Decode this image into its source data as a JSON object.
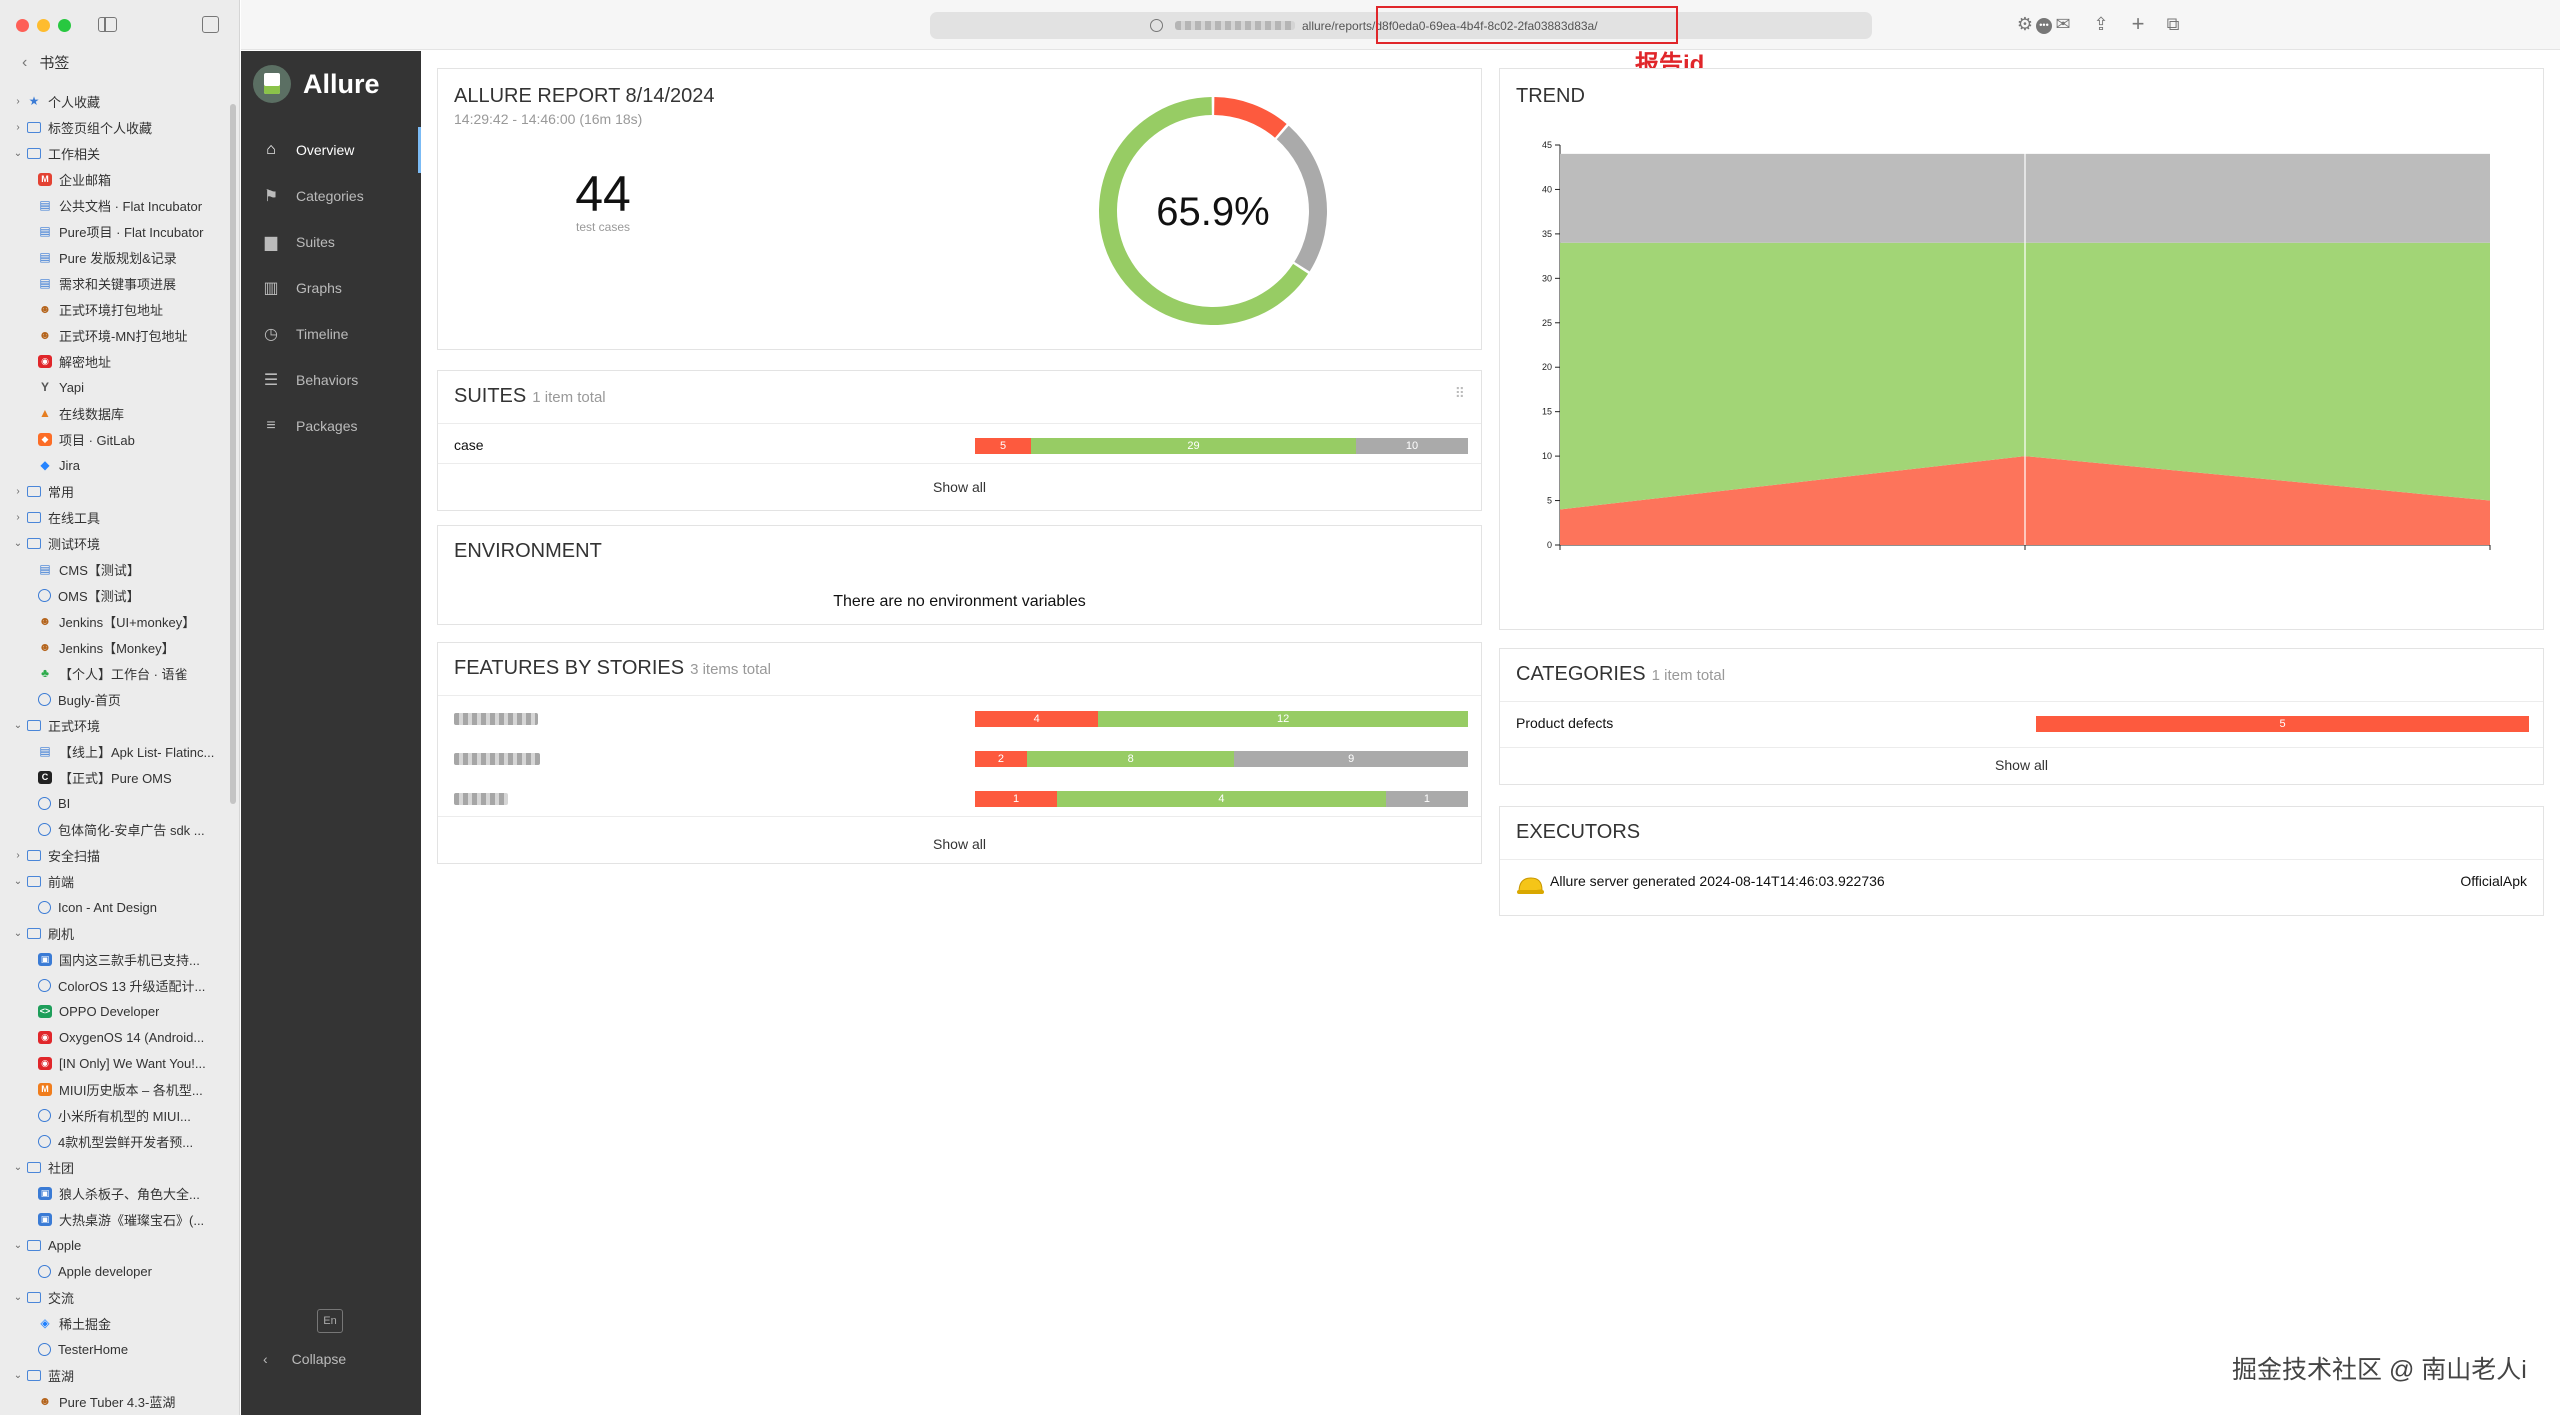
{
  "browser": {
    "bookmarks_header": "书签",
    "url_visible": "allure/reports/d8f0eda0-69ea-4b4f-8c02-2fa03883d83a/",
    "annotation_label": "报告id",
    "bookmarks": [
      {
        "label": "个人收藏",
        "kind": "star",
        "chev": "›",
        "indent": 0
      },
      {
        "label": "标签页组个人收藏",
        "kind": "folder",
        "chev": "›",
        "indent": 0
      },
      {
        "label": "工作相关",
        "kind": "folder",
        "chev": "⌄",
        "indent": 0
      },
      {
        "label": "企业邮箱",
        "kind": "mail",
        "indent": 1
      },
      {
        "label": "公共文档 · Flat Incubator",
        "kind": "doc",
        "indent": 1
      },
      {
        "label": "Pure项目 · Flat Incubator",
        "kind": "doc",
        "indent": 1
      },
      {
        "label": "Pure 发版规划&记录",
        "kind": "doc",
        "indent": 1
      },
      {
        "label": "需求和关键事项进展",
        "kind": "doc",
        "indent": 1
      },
      {
        "label": "正式环境打包地址",
        "kind": "jenkins",
        "indent": 1
      },
      {
        "label": "正式环境-MN打包地址",
        "kind": "jenkins",
        "indent": 1
      },
      {
        "label": "解密地址",
        "kind": "red",
        "indent": 1
      },
      {
        "label": "Yapi",
        "kind": "yapi",
        "indent": 1
      },
      {
        "label": "在线数据库",
        "kind": "db",
        "indent": 1
      },
      {
        "label": "项目 · GitLab",
        "kind": "gitlab",
        "indent": 1
      },
      {
        "label": "Jira",
        "kind": "jira",
        "indent": 1
      },
      {
        "label": "常用",
        "kind": "folder",
        "chev": "›",
        "indent": 0
      },
      {
        "label": "在线工具",
        "kind": "folder",
        "chev": "›",
        "indent": 0
      },
      {
        "label": "测试环境",
        "kind": "folder",
        "chev": "⌄",
        "indent": 0
      },
      {
        "label": "CMS【测试】",
        "kind": "doc",
        "indent": 1
      },
      {
        "label": "OMS【测试】",
        "kind": "globe",
        "indent": 1
      },
      {
        "label": "Jenkins【UI+monkey】",
        "kind": "jenkins",
        "indent": 1
      },
      {
        "label": "Jenkins【Monkey】",
        "kind": "jenkins",
        "indent": 1
      },
      {
        "label": "【个人】工作台 · 语雀",
        "kind": "yuque",
        "indent": 1
      },
      {
        "label": "Bugly-首页",
        "kind": "globe",
        "indent": 1
      },
      {
        "label": "正式环境",
        "kind": "folder",
        "chev": "⌄",
        "indent": 0
      },
      {
        "label": "【线上】Apk List- Flatinc...",
        "kind": "doc",
        "indent": 1
      },
      {
        "label": "【正式】Pure OMS",
        "kind": "dark",
        "indent": 1
      },
      {
        "label": "BI",
        "kind": "globe",
        "indent": 1
      },
      {
        "label": "包体简化-安卓广告 sdk ...",
        "kind": "globe",
        "indent": 1
      },
      {
        "label": "安全扫描",
        "kind": "folder",
        "chev": "›",
        "indent": 0
      },
      {
        "label": "前端",
        "kind": "folder",
        "chev": "⌄",
        "indent": 0
      },
      {
        "label": "Icon - Ant Design",
        "kind": "globe",
        "indent": 1
      },
      {
        "label": "刷机",
        "kind": "folder",
        "chev": "⌄",
        "indent": 0
      },
      {
        "label": "国内这三款手机已支持...",
        "kind": "blue",
        "indent": 1
      },
      {
        "label": "ColorOS 13 升级适配计...",
        "kind": "globe",
        "indent": 1
      },
      {
        "label": "OPPO Developer",
        "kind": "green",
        "indent": 1
      },
      {
        "label": "OxygenOS 14 (Android...",
        "kind": "red",
        "indent": 1
      },
      {
        "label": "[IN Only] We Want You!...",
        "kind": "red",
        "indent": 1
      },
      {
        "label": "MIUI历史版本 – 各机型...",
        "kind": "orange",
        "indent": 1
      },
      {
        "label": "小米所有机型的 MIUI...",
        "kind": "globe",
        "indent": 1
      },
      {
        "label": "4款机型尝鲜开发者预...",
        "kind": "globe",
        "indent": 1
      },
      {
        "label": "社团",
        "kind": "folder",
        "chev": "⌄",
        "indent": 0
      },
      {
        "label": "狼人杀板子、角色大全...",
        "kind": "blue",
        "indent": 1
      },
      {
        "label": "大热桌游《璀璨宝石》(...",
        "kind": "blue",
        "indent": 1
      },
      {
        "label": "Apple",
        "kind": "folder",
        "chev": "⌄",
        "indent": 0
      },
      {
        "label": "Apple developer",
        "kind": "globe",
        "indent": 1
      },
      {
        "label": "交流",
        "kind": "folder",
        "chev": "⌄",
        "indent": 0
      },
      {
        "label": "稀土掘金",
        "kind": "juejin",
        "indent": 1
      },
      {
        "label": "TesterHome",
        "kind": "globe",
        "indent": 1
      },
      {
        "label": "蓝湖",
        "kind": "folder",
        "chev": "⌄",
        "indent": 0
      },
      {
        "label": "Pure Tuber 4.3-蓝湖",
        "kind": "jenkins",
        "indent": 1
      }
    ]
  },
  "allure": {
    "brand": "Allure",
    "nav": [
      {
        "label": "Overview",
        "icon": "home-icon",
        "glyph": "⌂",
        "active": true
      },
      {
        "label": "Categories",
        "icon": "flag-icon",
        "glyph": "⚑",
        "active": false
      },
      {
        "label": "Suites",
        "icon": "briefcase-icon",
        "glyph": "▆",
        "active": false
      },
      {
        "label": "Graphs",
        "icon": "bar-chart-icon",
        "glyph": "▥",
        "active": false
      },
      {
        "label": "Timeline",
        "icon": "clock-icon",
        "glyph": "◷",
        "active": false
      },
      {
        "label": "Behaviors",
        "icon": "list-icon",
        "glyph": "☰",
        "active": false
      },
      {
        "label": "Packages",
        "icon": "align-left-icon",
        "glyph": "≡",
        "active": false
      }
    ],
    "lang": "En",
    "collapse": "Collapse",
    "summary": {
      "title": "ALLURE REPORT 8/14/2024",
      "time": "14:29:42 - 14:46:00 (16m 18s)",
      "count": "44",
      "count_label": "test cases",
      "percent": "65.9%",
      "failed": 5,
      "passed": 29,
      "skipped": 10
    },
    "suites": {
      "title": "SUITES",
      "count": "1 item total",
      "rows": [
        {
          "name": "case",
          "failed": 5,
          "passed": 29,
          "skipped": 10
        }
      ],
      "show_all": "Show all"
    },
    "environment": {
      "title": "ENVIRONMENT",
      "empty": "There are no environment variables"
    },
    "features": {
      "title": "FEATURES BY STORIES",
      "count": "3 items total",
      "rows": [
        {
          "failed": 4,
          "passed": 12,
          "skipped": 0
        },
        {
          "failed": 2,
          "passed": 8,
          "skipped": 9
        },
        {
          "failed": 1,
          "passed": 4,
          "skipped": 1
        }
      ],
      "show_all": "Show all"
    },
    "trend": {
      "title": "TREND",
      "chart_data": {
        "type": "area",
        "title": "TREND",
        "x": [
          0,
          1,
          2
        ],
        "ylim": [
          0,
          45
        ],
        "yticks": [
          "0",
          "5",
          "10",
          "15",
          "20",
          "25",
          "30",
          "35",
          "40",
          "45"
        ],
        "series": [
          {
            "name": "failed",
            "color": "#fd745b",
            "values": [
              4,
              10,
              5
            ]
          },
          {
            "name": "passed",
            "color": "#a2d576",
            "values": [
              30,
              24,
              29
            ]
          },
          {
            "name": "skipped",
            "color": "#bcbcbc",
            "values": [
              10,
              10,
              10
            ]
          }
        ]
      }
    },
    "categories": {
      "title": "CATEGORIES",
      "count": "1 item total",
      "rows": [
        {
          "name": "Product defects",
          "value": 5
        }
      ],
      "show_all": "Show all"
    },
    "executors": {
      "title": "EXECUTORS",
      "name": "Allure server generated 2024-08-14T14:46:03.922736",
      "build": "OfficialApk"
    }
  },
  "colors": {
    "failed": "#fd5a3e",
    "passed": "#97cc64",
    "skipped": "#aaaaaa",
    "accent": "#e0262a"
  },
  "watermark": "掘金技术社区 @ 南山老人i"
}
